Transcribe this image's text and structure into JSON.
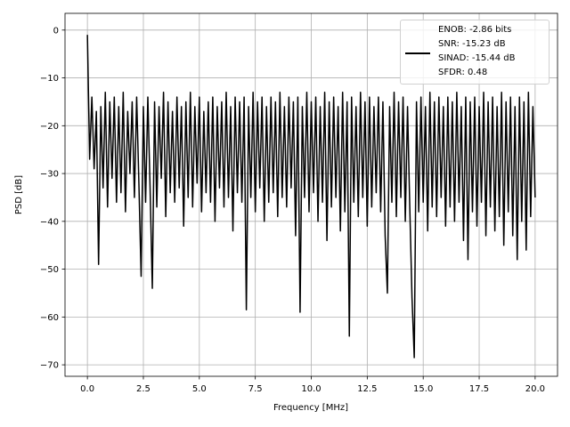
{
  "chart_data": {
    "type": "line",
    "x_label": "Frequency [MHz]",
    "y_label": "PSD [dB]",
    "grid": true,
    "legend": "upper right",
    "xlim": [
      -1,
      21
    ],
    "ylim": [
      -72.4,
      3.5
    ],
    "xticks": [
      {
        "value": 0,
        "label": "0.0"
      },
      {
        "value": 2.5,
        "label": "2.5"
      },
      {
        "value": 5,
        "label": "5.0"
      },
      {
        "value": 7.5,
        "label": "7.5"
      },
      {
        "value": 10,
        "label": "10.0"
      },
      {
        "value": 12.5,
        "label": "12.5"
      },
      {
        "value": 15,
        "label": "15.0"
      },
      {
        "value": 17.5,
        "label": "17.5"
      },
      {
        "value": 20,
        "label": "20.0"
      }
    ],
    "yticks": [
      0,
      {
        "value": -10,
        "label": "−10"
      },
      {
        "value": -20,
        "label": "−20"
      },
      {
        "value": -30,
        "label": "−30"
      },
      {
        "value": -40,
        "label": "−40"
      },
      {
        "value": -50,
        "label": "−50"
      },
      {
        "value": -60,
        "label": "−60"
      },
      {
        "value": -70,
        "label": "−70"
      }
    ],
    "x": [
      0,
      0.1,
      0.2,
      0.3,
      0.4,
      0.5,
      0.6,
      0.7,
      0.8,
      0.9,
      1,
      1.1,
      1.2,
      1.3,
      1.4,
      1.5,
      1.6,
      1.7,
      1.8,
      1.9,
      2,
      2.1,
      2.2,
      2.3,
      2.4,
      2.5,
      2.6,
      2.7,
      2.8,
      2.9,
      3,
      3.1,
      3.2,
      3.3,
      3.4,
      3.5,
      3.6,
      3.7,
      3.8,
      3.9,
      4,
      4.1,
      4.2,
      4.3,
      4.4,
      4.5,
      4.6,
      4.7,
      4.8,
      4.9,
      5,
      5.1,
      5.2,
      5.3,
      5.4,
      5.5,
      5.6,
      5.7,
      5.8,
      5.9,
      6,
      6.1,
      6.2,
      6.3,
      6.4,
      6.5,
      6.6,
      6.7,
      6.8,
      6.9,
      7,
      7.1,
      7.2,
      7.3,
      7.4,
      7.5,
      7.6,
      7.7,
      7.8,
      7.9,
      8,
      8.1,
      8.2,
      8.3,
      8.4,
      8.5,
      8.6,
      8.7,
      8.8,
      8.9,
      9,
      9.1,
      9.2,
      9.3,
      9.4,
      9.5,
      9.6,
      9.7,
      9.8,
      9.9,
      10,
      10.1,
      10.2,
      10.3,
      10.4,
      10.5,
      10.6,
      10.7,
      10.8,
      10.9,
      11,
      11.1,
      11.2,
      11.3,
      11.4,
      11.5,
      11.6,
      11.7,
      11.8,
      11.9,
      12,
      12.1,
      12.2,
      12.3,
      12.4,
      12.5,
      12.6,
      12.7,
      12.8,
      12.9,
      13,
      13.1,
      13.2,
      13.3,
      13.4,
      13.5,
      13.6,
      13.7,
      13.8,
      13.9,
      14,
      14.1,
      14.2,
      14.3,
      14.4,
      14.5,
      14.6,
      14.7,
      14.8,
      14.9,
      15,
      15.1,
      15.2,
      15.3,
      15.4,
      15.5,
      15.6,
      15.7,
      15.8,
      15.9,
      16,
      16.1,
      16.2,
      16.3,
      16.4,
      16.5,
      16.6,
      16.7,
      16.8,
      16.9,
      17,
      17.1,
      17.2,
      17.3,
      17.4,
      17.5,
      17.6,
      17.7,
      17.8,
      17.9,
      18,
      18.1,
      18.2,
      18.3,
      18.4,
      18.5,
      18.6,
      18.7,
      18.8,
      18.9,
      19,
      19.1,
      19.2,
      19.3,
      19.4,
      19.5,
      19.6,
      19.7,
      19.8,
      19.9,
      20
    ],
    "series": [
      {
        "name": "ENOB: -2.86 bits\nSNR: -15.23 dB\nSINAD: -15.44 dB\nSFDR: 0.48",
        "color": "#000000",
        "values": [
          -1,
          -27,
          -14,
          -29,
          -17,
          -49,
          -16,
          -33,
          -13,
          -37,
          -15,
          -31,
          -14,
          -36,
          -16,
          -34,
          -13,
          -38,
          -17,
          -30,
          -15,
          -35,
          -14,
          -32,
          -51.5,
          -16,
          -36,
          -14,
          -33,
          -54,
          -15,
          -37,
          -16,
          -31,
          -13,
          -39,
          -15,
          -34,
          -17,
          -36,
          -14,
          -33,
          -16,
          -41,
          -15,
          -35,
          -13,
          -37,
          -16,
          -32,
          -14,
          -38,
          -17,
          -34,
          -15,
          -36,
          -14,
          -40,
          -16,
          -33,
          -15,
          -37,
          -13,
          -35,
          -16,
          -42,
          -14,
          -34,
          -15,
          -36,
          -14,
          -58.5,
          -16,
          -35,
          -13,
          -38,
          -15,
          -33,
          -14,
          -40,
          -16,
          -36,
          -14,
          -34,
          -15,
          -39,
          -13,
          -35,
          -16,
          -37,
          -14,
          -33,
          -15,
          -43,
          -14,
          -59,
          -16,
          -35,
          -13,
          -38,
          -15,
          -34,
          -14,
          -40,
          -16,
          -36,
          -13,
          -44,
          -15,
          -37,
          -14,
          -35,
          -16,
          -42,
          -13,
          -38,
          -15,
          -64,
          -14,
          -36,
          -16,
          -39,
          -13,
          -35,
          -15,
          -41,
          -14,
          -37,
          -16,
          -34,
          -14,
          -38,
          -15,
          -43,
          -55,
          -16,
          -36,
          -13,
          -39,
          -15,
          -35,
          -14,
          -40,
          -16,
          -37,
          -56,
          -68.5,
          -15,
          -38,
          -14,
          -36,
          -16,
          -42,
          -13,
          -37,
          -15,
          -39,
          -14,
          -35,
          -16,
          -41,
          -14,
          -37,
          -15,
          -40,
          -13,
          -36,
          -16,
          -44,
          -14,
          -48,
          -15,
          -38,
          -14,
          -41,
          -16,
          -36,
          -13,
          -43,
          -15,
          -37,
          -14,
          -42,
          -16,
          -39,
          -13,
          -45,
          -15,
          -38,
          -14,
          -43,
          -16,
          -48,
          -14,
          -40,
          -15,
          -46,
          -13,
          -39,
          -16,
          -35
        ]
      }
    ]
  }
}
